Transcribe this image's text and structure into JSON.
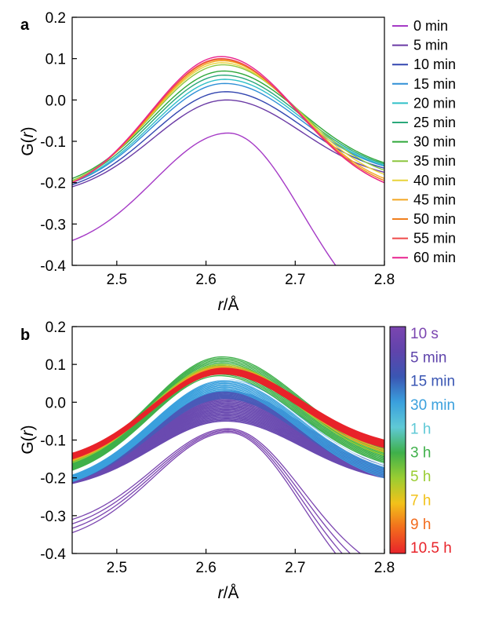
{
  "chart_data": [
    {
      "type": "line",
      "panel": "a",
      "xlabel_italic": "r",
      "xlabel_unit": "/Å",
      "ylabel_pre": "G(",
      "ylabel_italic": "r",
      "ylabel_post": ")",
      "xlim": [
        2.45,
        2.8
      ],
      "ylim": [
        -0.4,
        0.2
      ],
      "x_ticks": [
        "2.5",
        "2.6",
        "2.7",
        "2.8"
      ],
      "y_ticks": [
        "-0.4",
        "-0.3",
        "-0.2",
        "-0.1",
        "0.0",
        "0.1",
        "0.2"
      ],
      "legend_placement": "right",
      "series": [
        {
          "name": "0 min",
          "color": "#a53ac6",
          "peak_x": 2.625,
          "peak_y": -0.08,
          "y_at_2_45": -0.34,
          "y_at_2_8": -0.52
        },
        {
          "name": "5 min",
          "color": "#6a3aa5",
          "peak_x": 2.623,
          "peak_y": 0.0,
          "y_at_2_45": -0.21,
          "y_at_2_8": -0.175
        },
        {
          "name": "10 min",
          "color": "#3346b0",
          "peak_x": 2.622,
          "peak_y": 0.02,
          "y_at_2_45": -0.205,
          "y_at_2_8": -0.165
        },
        {
          "name": "15 min",
          "color": "#2f8fd6",
          "peak_x": 2.621,
          "peak_y": 0.04,
          "y_at_2_45": -0.2,
          "y_at_2_8": -0.16
        },
        {
          "name": "20 min",
          "color": "#2fc0c8",
          "peak_x": 2.621,
          "peak_y": 0.05,
          "y_at_2_45": -0.198,
          "y_at_2_8": -0.158
        },
        {
          "name": "25 min",
          "color": "#2aa87a",
          "peak_x": 2.62,
          "peak_y": 0.06,
          "y_at_2_45": -0.195,
          "y_at_2_8": -0.155
        },
        {
          "name": "30 min",
          "color": "#2fa83a",
          "peak_x": 2.62,
          "peak_y": 0.07,
          "y_at_2_45": -0.19,
          "y_at_2_8": -0.152
        },
        {
          "name": "35 min",
          "color": "#8cc63f",
          "peak_x": 2.619,
          "peak_y": 0.085,
          "y_at_2_45": -0.195,
          "y_at_2_8": -0.17
        },
        {
          "name": "40 min",
          "color": "#e8d43a",
          "peak_x": 2.618,
          "peak_y": 0.09,
          "y_at_2_45": -0.198,
          "y_at_2_8": -0.18
        },
        {
          "name": "45 min",
          "color": "#f3a623",
          "peak_x": 2.618,
          "peak_y": 0.095,
          "y_at_2_45": -0.2,
          "y_at_2_8": -0.19
        },
        {
          "name": "50 min",
          "color": "#f07f1e",
          "peak_x": 2.617,
          "peak_y": 0.098,
          "y_at_2_45": -0.2,
          "y_at_2_8": -0.195
        },
        {
          "name": "55 min",
          "color": "#ef4a4a",
          "peak_x": 2.617,
          "peak_y": 0.1,
          "y_at_2_45": -0.2,
          "y_at_2_8": -0.2
        },
        {
          "name": "60 min",
          "color": "#e8238f",
          "peak_x": 2.617,
          "peak_y": 0.105,
          "y_at_2_45": -0.2,
          "y_at_2_8": -0.2
        }
      ]
    },
    {
      "type": "line",
      "panel": "b",
      "xlabel_italic": "r",
      "xlabel_unit": "/Å",
      "ylabel_pre": "G(",
      "ylabel_italic": "r",
      "ylabel_post": ")",
      "xlim": [
        2.45,
        2.8
      ],
      "ylim": [
        -0.4,
        0.2
      ],
      "x_ticks": [
        "2.5",
        "2.6",
        "2.7",
        "2.8"
      ],
      "y_ticks": [
        "-0.4",
        "-0.3",
        "-0.2",
        "-0.1",
        "0.0",
        "0.1",
        "0.2"
      ],
      "colorbar_placement": "right",
      "colorbar": [
        {
          "label": "10 s",
          "color": "#7b45b0"
        },
        {
          "label": "5 min",
          "color": "#5f44ab"
        },
        {
          "label": "15 min",
          "color": "#3a56b3"
        },
        {
          "label": "30 min",
          "color": "#3aa0dd"
        },
        {
          "label": "1 h",
          "color": "#5fc9d6"
        },
        {
          "label": "3 h",
          "color": "#3fb04a"
        },
        {
          "label": "5 h",
          "color": "#9acd32"
        },
        {
          "label": "7 h",
          "color": "#f2c21a"
        },
        {
          "label": "9 h",
          "color": "#f26b1d"
        },
        {
          "label": "10.5 h",
          "color": "#e8232a"
        }
      ],
      "bands": [
        {
          "color": "#7b45b0",
          "count": 4,
          "peak_x": [
            2.625,
            2.625
          ],
          "peak_y": [
            -0.08,
            -0.07
          ],
          "y_at_2_45": [
            -0.345,
            -0.31
          ],
          "y_at_2_8": [
            -0.52,
            -0.44
          ]
        },
        {
          "color": "#6a4ab0",
          "count": 22,
          "peak_x": [
            2.622,
            2.625
          ],
          "peak_y": [
            -0.05,
            0.01
          ],
          "y_at_2_45": [
            -0.215,
            -0.2
          ],
          "y_at_2_8": [
            -0.2,
            -0.17
          ]
        },
        {
          "color": "#4a5ab8",
          "count": 10,
          "peak_x": [
            2.621,
            2.623
          ],
          "peak_y": [
            0.01,
            0.03
          ],
          "y_at_2_45": [
            -0.21,
            -0.195
          ],
          "y_at_2_8": [
            -0.195,
            -0.165
          ]
        },
        {
          "color": "#3aa0dd",
          "count": 10,
          "peak_x": [
            2.62,
            2.622
          ],
          "peak_y": [
            0.03,
            0.06
          ],
          "y_at_2_45": [
            -0.21,
            -0.19
          ],
          "y_at_2_8": [
            -0.2,
            -0.16
          ]
        },
        {
          "color": "#ffffff",
          "count": 3,
          "peak_x": [
            2.62,
            2.621
          ],
          "peak_y": [
            0.06,
            0.07
          ],
          "y_at_2_45": [
            -0.19,
            -0.18
          ],
          "y_at_2_8": [
            -0.17,
            -0.16
          ]
        },
        {
          "color": "#3fb04a",
          "count": 14,
          "peak_x": [
            2.615,
            2.618
          ],
          "peak_y": [
            0.07,
            0.12
          ],
          "y_at_2_45": [
            -0.18,
            -0.155
          ],
          "y_at_2_8": [
            -0.16,
            -0.12
          ]
        },
        {
          "color": "#9acd32",
          "count": 4,
          "peak_x": [
            2.617,
            2.618
          ],
          "peak_y": [
            0.09,
            0.1
          ],
          "y_at_2_45": [
            -0.16,
            -0.15
          ],
          "y_at_2_8": [
            -0.14,
            -0.12
          ]
        },
        {
          "color": "#f2a623",
          "count": 4,
          "peak_x": [
            2.618,
            2.619
          ],
          "peak_y": [
            0.085,
            0.095
          ],
          "y_at_2_45": [
            -0.155,
            -0.148
          ],
          "y_at_2_8": [
            -0.13,
            -0.115
          ]
        },
        {
          "color": "#e8232a",
          "count": 12,
          "peak_x": [
            2.618,
            2.62
          ],
          "peak_y": [
            0.075,
            0.09
          ],
          "y_at_2_45": [
            -0.15,
            -0.135
          ],
          "y_at_2_8": [
            -0.12,
            -0.1
          ]
        }
      ]
    }
  ]
}
